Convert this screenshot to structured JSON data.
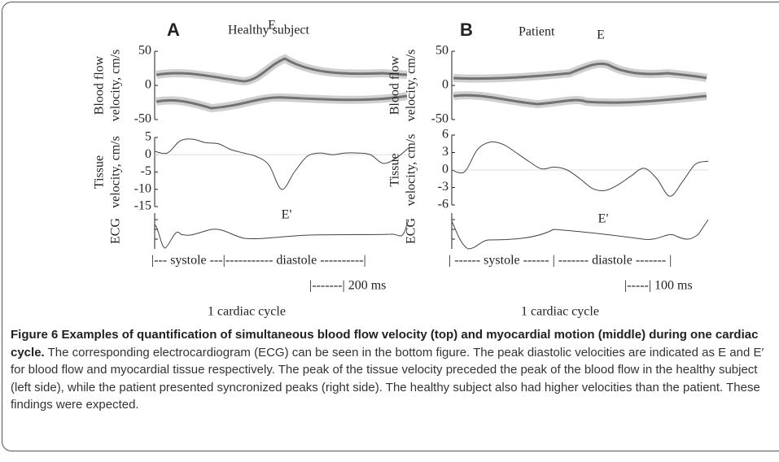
{
  "figure": {
    "panels": [
      {
        "letter": "A",
        "title": "Healthy subject",
        "blood_flow": {
          "ylabel": [
            "Blood flow",
            "velocity, cm/s"
          ],
          "ylim": [
            -50,
            50
          ],
          "yticks": [
            50,
            0,
            -50
          ],
          "peak_label": "E"
        },
        "tissue": {
          "ylabel": [
            "Tissue",
            "velocity, cm/s"
          ],
          "ylim": [
            -15,
            5
          ],
          "yticks": [
            5,
            0,
            -5,
            -10,
            -15
          ],
          "peak_label": "E'",
          "values": [
            1,
            0.5,
            4,
            4.5,
            3.5,
            3.2,
            1.5,
            0.5,
            -0.5,
            -3,
            -10,
            -5,
            -0.5,
            0.5,
            0,
            0.5,
            0.5,
            0,
            -2.5,
            -1,
            2
          ]
        },
        "ecg": {
          "ylabel": "ECG"
        },
        "phases": "|--- systole ---|----------- diastole ----------|",
        "scale": "|-------| 200 ms",
        "cycle": "1 cardiac cycle"
      },
      {
        "letter": "B",
        "title": "Patient",
        "blood_flow": {
          "ylabel": [
            "Blood flow",
            "velocity, cm/s"
          ],
          "ylim": [
            -50,
            50
          ],
          "yticks": [
            50,
            0,
            -50
          ],
          "peak_label": "E"
        },
        "tissue": {
          "ylabel": [
            "Tissue",
            "velocity, cm/s"
          ],
          "ylim": [
            -6,
            6
          ],
          "yticks": [
            6,
            3,
            0,
            -3,
            -6
          ],
          "peak_label": "E'",
          "values": [
            0,
            -0.3,
            3.5,
            4.8,
            4.4,
            3,
            1.5,
            0.2,
            0.5,
            0,
            -1.5,
            -3.2,
            -3.5,
            -2.5,
            -1,
            0.3,
            -1.5,
            -4.5,
            -2,
            1,
            1.5
          ]
        },
        "ecg": {
          "ylabel": "ECG"
        },
        "phases": "| ------ systole ------ | ------- diastole ------- |",
        "scale": "|-----| 100 ms",
        "cycle": "1 cardiac cycle"
      }
    ],
    "caption": {
      "title": "Figure 6 Examples of quantification of simultaneous blood flow velocity (top) and myocardial motion (middle) during one cardiac cycle.",
      "text": "The corresponding electrocardiogram (ECG) can be seen in the bottom figure. The peak diastolic velocities are indicated as E and E′ for blood flow and myocardial tissue respectively. The peak of the tissue velocity preceded the peak of the blood flow in the healthy subject (left side), while the patient presented syncronized peaks (right side). The healthy subject also had higher velocities than the patient. These findings were expected."
    }
  }
}
